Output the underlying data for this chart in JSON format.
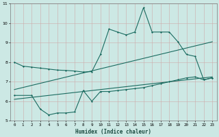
{
  "xlabel": "Humidex (Indice chaleur)",
  "xlim": [
    -0.5,
    23.5
  ],
  "ylim": [
    5,
    11
  ],
  "xticks": [
    0,
    1,
    2,
    3,
    4,
    5,
    6,
    7,
    8,
    9,
    10,
    11,
    12,
    13,
    14,
    15,
    16,
    17,
    18,
    19,
    20,
    21,
    22,
    23
  ],
  "yticks": [
    5,
    6,
    7,
    8,
    9,
    10,
    11
  ],
  "bg_color": "#cce8e4",
  "grid_color": "#b0c8c4",
  "line_color": "#1a6b60",
  "line1_x": [
    0,
    1,
    2,
    3,
    4,
    5,
    6,
    7,
    8,
    9,
    10,
    11,
    12,
    13,
    14,
    15,
    16,
    17,
    18,
    19,
    20,
    21,
    22,
    23
  ],
  "line1_y": [
    8.0,
    7.8,
    7.75,
    7.7,
    7.65,
    7.6,
    7.58,
    7.55,
    7.5,
    7.52,
    8.4,
    9.7,
    9.55,
    9.4,
    9.55,
    10.8,
    9.55,
    9.55,
    9.55,
    9.05,
    8.4,
    8.3,
    7.1,
    7.2
  ],
  "line2_x": [
    0,
    2,
    3,
    4,
    5,
    6,
    7,
    8,
    9,
    10,
    11,
    12,
    13,
    14,
    15,
    16,
    17,
    18,
    19,
    20,
    21,
    22,
    23
  ],
  "line2_y": [
    6.3,
    6.3,
    5.6,
    5.3,
    5.4,
    5.4,
    5.45,
    6.55,
    6.0,
    6.5,
    6.5,
    6.55,
    6.6,
    6.65,
    6.7,
    6.8,
    6.9,
    7.0,
    7.1,
    7.2,
    7.25,
    7.1,
    7.2
  ],
  "line3_x": [
    0,
    23
  ],
  "line3_y": [
    6.6,
    9.05
  ],
  "line4_x": [
    0,
    23
  ],
  "line4_y": [
    6.1,
    7.25
  ]
}
